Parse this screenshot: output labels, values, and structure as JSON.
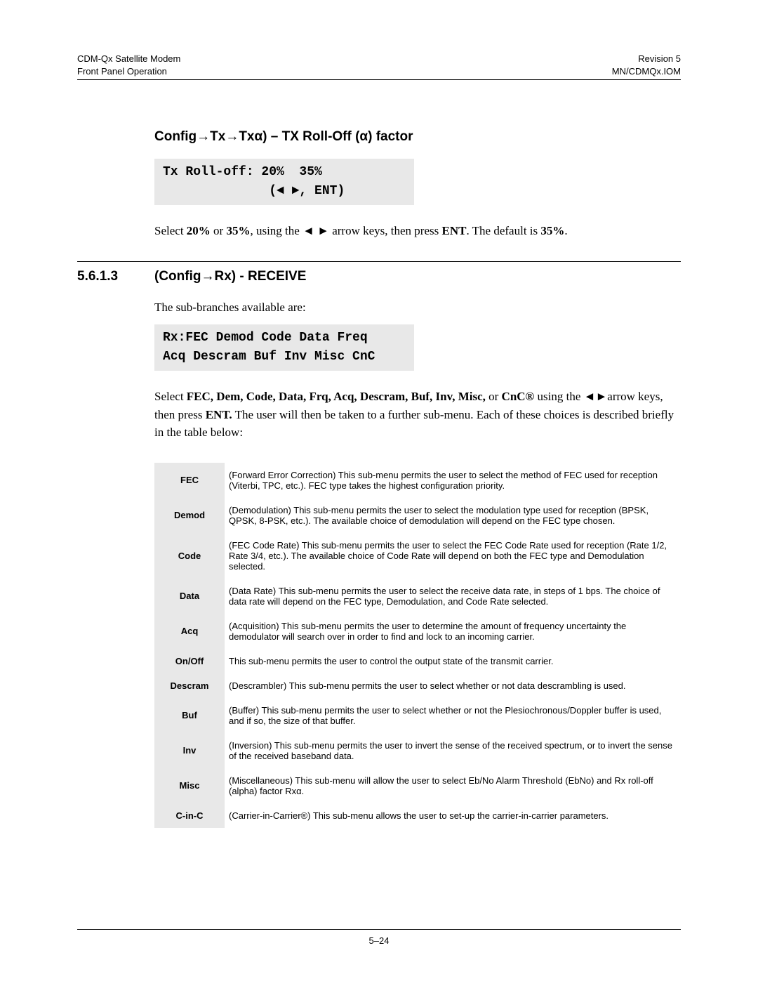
{
  "header": {
    "left_line1": "CDM-Qx Satellite Modem",
    "left_line2": "Front Panel Operation",
    "right_line1": "Revision 5",
    "right_line2": "MN/CDMQx.IOM"
  },
  "section_a": {
    "title": "Config→Tx→Txα) – TX Roll-Off (α) factor",
    "lcd_line1": "Tx Roll-off: 20%  35%",
    "lcd_line2": "              (◄ ►, ENT)",
    "body_prefix": "Select ",
    "body_opt1": "20%",
    "body_or": " or ",
    "body_opt2": "35%",
    "body_mid": ", using the ◄ ►  arrow keys, then press ",
    "body_ent": "ENT",
    "body_suffix": ". The default is ",
    "body_default": "35%",
    "body_period": "."
  },
  "section_b": {
    "number": "5.6.1.3",
    "title": "(Config→Rx) - RECEIVE",
    "intro": "The sub-branches available are:",
    "lcd_line1": "Rx:FEC Demod Code Data Freq",
    "lcd_line2": "Acq Descram Buf Inv Misc CnC",
    "para_prefix": "Select  ",
    "para_options": "FEC, Dem, Code, Data, Frq, Acq, Descram, Buf, Inv, Misc,",
    "para_or": " or ",
    "para_cnc": "CnC®",
    "para_using": " using the ",
    "para_arrows": "◄►",
    "para_mid": "arrow keys, then press ",
    "para_ent": "ENT.",
    "para_tail": "  The user will then be taken to a further sub-menu. Each of these choices is described briefly in the table below:"
  },
  "table": [
    {
      "key": "FEC",
      "desc": "(Forward Error Correction) This sub-menu permits the user to select the method of FEC used for reception (Viterbi, TPC, etc.). FEC type takes the highest configuration priority."
    },
    {
      "key": "Demod",
      "desc": "(Demodulation) This sub-menu permits the user to select the modulation type used for reception (BPSK, QPSK, 8-PSK, etc.). The available choice of demodulation will depend on the FEC type chosen."
    },
    {
      "key": "Code",
      "desc": "(FEC Code Rate) This sub-menu permits the user to select the FEC Code Rate used for reception (Rate 1/2, Rate 3/4, etc.). The available choice of Code Rate will depend on both the FEC type and Demodulation selected."
    },
    {
      "key": "Data",
      "desc": "(Data Rate) This sub-menu permits the user to select the receive data rate, in steps of 1 bps. The choice of data rate will depend on the FEC type, Demodulation, and Code Rate selected."
    },
    {
      "key": "Acq",
      "desc": "(Acquisition) This sub-menu permits the user to determine the amount of frequency uncertainty the demodulator will search over in order to find and lock to an incoming carrier."
    },
    {
      "key": "On/Off",
      "desc": "This sub-menu permits the user to control the output state of the transmit carrier."
    },
    {
      "key": "Descram",
      "desc": "(Descrambler) This sub-menu permits the user to select whether or not data descrambling is used."
    },
    {
      "key": "Buf",
      "desc": "(Buffer) This sub-menu permits the user to select whether or not the Plesiochronous/Doppler buffer is used, and if so, the size of that buffer."
    },
    {
      "key": "Inv",
      "desc": "(Inversion) This sub-menu permits the user to invert the sense of the received spectrum, or to invert the sense of the received baseband data."
    },
    {
      "key": "Misc",
      "desc": "(Miscellaneous) This sub-menu will allow the user to select Eb/No Alarm Threshold (EbNo) and Rx roll-off (alpha) factor Rxα."
    },
    {
      "key": "C-in-C",
      "desc": "(Carrier-in-Carrier®) This sub-menu allows the user to set-up the carrier-in-carrier parameters."
    }
  ],
  "footer": {
    "page": "5–24"
  }
}
